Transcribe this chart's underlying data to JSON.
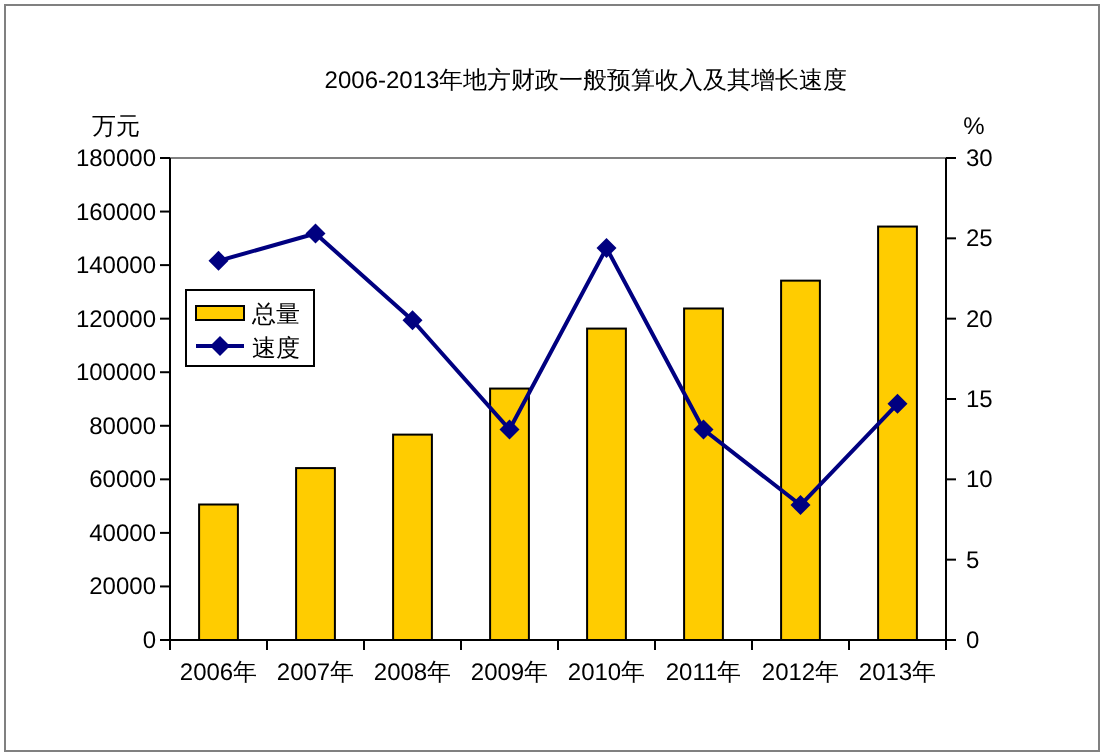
{
  "chart_data": {
    "type": "bar",
    "title": "2006-2013年地方财政一般预算收入及其增长速度",
    "ylabel": "万元",
    "y2label": "%",
    "categories": [
      "2006年",
      "2007年",
      "2008年",
      "2009年",
      "2010年",
      "2011年",
      "2012年",
      "2013年"
    ],
    "series": [
      {
        "name": "总量",
        "color": "#ffcc00",
        "values": [
          50600,
          64200,
          76700,
          93900,
          116300,
          123800,
          134200,
          154400
        ]
      },
      {
        "name": "速度",
        "type": "line",
        "axis": "y2",
        "color": "#000080",
        "marker": "diamond",
        "values": [
          23.6,
          25.3,
          19.9,
          13.1,
          24.4,
          13.1,
          8.4,
          14.7
        ]
      }
    ],
    "ylim": [
      0,
      180000
    ],
    "yticks": [
      0,
      20000,
      40000,
      60000,
      80000,
      100000,
      120000,
      140000,
      160000,
      180000
    ],
    "y2lim": [
      0,
      30
    ],
    "y2ticks": [
      0,
      5,
      10,
      15,
      20,
      25,
      30
    ],
    "legend": "top left",
    "grid": false
  }
}
